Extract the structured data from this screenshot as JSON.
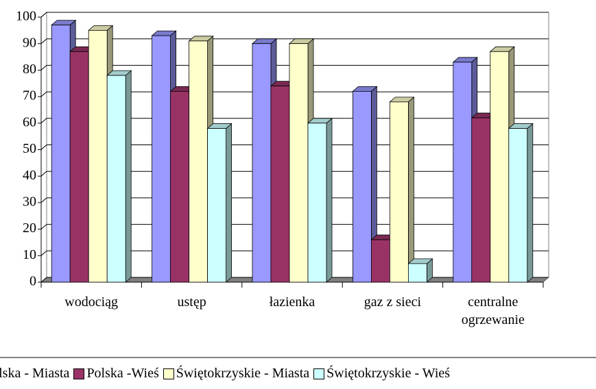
{
  "chart_data": {
    "type": "bar3d",
    "categories": [
      "wodociąg",
      "ustęp",
      "łazienka",
      "gaz z sieci",
      "centralne ogrzewanie"
    ],
    "series": [
      {
        "name": "Polska - Miasta",
        "color": "#9999ff",
        "values": [
          97,
          93,
          90,
          72,
          83
        ]
      },
      {
        "name": "Polska -Wieś",
        "color": "#993366",
        "values": [
          87,
          72,
          74,
          16,
          62
        ]
      },
      {
        "name": "Świętokrzyskie - Miasta",
        "color": "#ffffcc",
        "values": [
          95,
          91,
          90,
          68,
          87
        ]
      },
      {
        "name": "Świętokrzyskie - Wieś",
        "color": "#ccffff",
        "values": [
          78,
          58,
          60,
          7,
          58
        ]
      }
    ],
    "ylim": [
      0,
      100
    ],
    "yticks": [
      0,
      10,
      20,
      30,
      40,
      50,
      60,
      70,
      80,
      90,
      100
    ],
    "grid": true,
    "legend": "bottom"
  }
}
